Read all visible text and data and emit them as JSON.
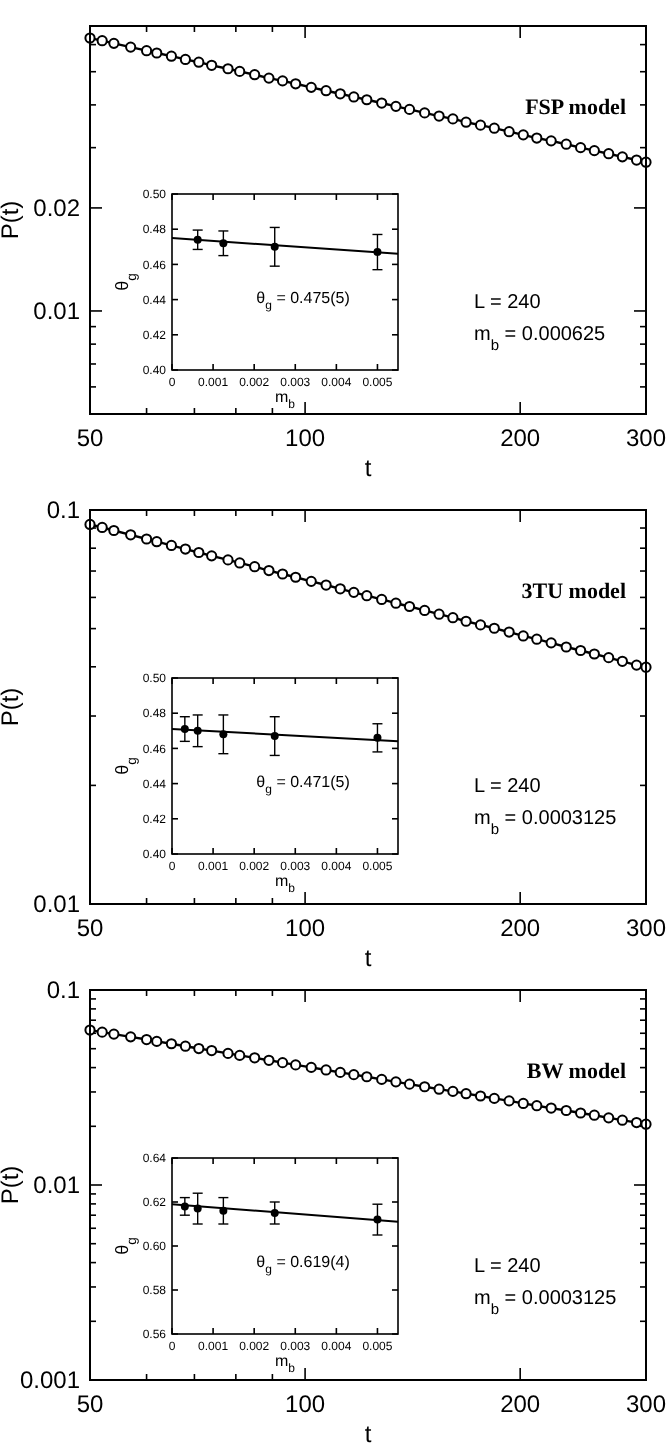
{
  "chart_data": [
    {
      "type": "line",
      "xlabel": "t",
      "ylabel": "P(t)",
      "log": "xy",
      "marker": "circle",
      "xlim": [
        50,
        300
      ],
      "ylim": [
        0.005,
        0.068
      ],
      "xticks": [
        50,
        {
          "value": 60,
          "label": null
        },
        {
          "value": 70,
          "label": null
        },
        {
          "value": 80,
          "label": null
        },
        {
          "value": 90,
          "label": null
        },
        100,
        200,
        300
      ],
      "yticks": [
        {
          "value": 0.006,
          "label": null
        },
        {
          "value": 0.007,
          "label": null
        },
        {
          "value": 0.008,
          "label": null
        },
        {
          "value": 0.009,
          "label": null
        },
        0.01,
        0.02,
        {
          "value": 0.03,
          "label": null
        },
        {
          "value": 0.04,
          "label": null
        },
        {
          "value": 0.05,
          "label": null
        },
        {
          "value": 0.06,
          "label": null
        }
      ],
      "annotations": [
        "FSP model",
        "L = 240",
        "m$_{b}$ = 0.000625"
      ],
      "x": [
        50,
        52,
        54,
        57,
        60,
        62,
        65,
        68,
        71,
        74,
        78,
        81,
        85,
        89,
        93,
        97,
        102,
        107,
        112,
        117,
        122,
        128,
        134,
        140,
        147,
        154,
        161,
        168,
        176,
        184,
        193,
        202,
        211,
        221,
        232,
        243,
        254,
        266,
        278,
        291,
        300
      ],
      "series": [
        {
          "color": "#000000",
          "values": [
            0.0627,
            0.0616,
            0.0605,
            0.059,
            0.0576,
            0.0567,
            0.0555,
            0.0543,
            0.0533,
            0.0522,
            0.051,
            0.0501,
            0.049,
            0.0479,
            0.047,
            0.0461,
            0.045,
            0.044,
            0.0431,
            0.0422,
            0.0414,
            0.0405,
            0.0396,
            0.0388,
            0.0379,
            0.0371,
            0.0364,
            0.0356,
            0.0349,
            0.0342,
            0.0334,
            0.0327,
            0.032,
            0.0314,
            0.0307,
            0.03,
            0.0294,
            0.0288,
            0.0282,
            0.0276,
            0.0272
          ]
        }
      ]
    },
    {
      "type": "scatter",
      "xlabel": "m$_{b}$",
      "ylabel": "θ$_{g}$",
      "marker": "circle",
      "xlim": [
        0,
        0.0055
      ],
      "ylim": [
        0.4,
        0.5
      ],
      "xticks": [
        0,
        0.001,
        0.002,
        0.003,
        0.004,
        0.005
      ],
      "yticks": [
        {
          "value": 0.4,
          "label": "0.40"
        },
        0.42,
        0.44,
        0.46,
        0.48,
        {
          "value": 0.5,
          "label": "0.50"
        }
      ],
      "annotations": [
        "θ$_{g}$ = 0.475(5)"
      ],
      "series": [
        {
          "color": "#000000",
          "x": [
            0.000625,
            0.00125,
            0.0025,
            0.005
          ],
          "values": [
            0.474,
            0.472,
            0.47,
            0.467
          ],
          "errors": [
            0.0055,
            0.007,
            0.011,
            0.01
          ]
        },
        {
          "type": "line",
          "color": "#000000",
          "marker": "none",
          "x": [
            0,
            0.0055
          ],
          "values": [
            0.475,
            0.466
          ]
        }
      ]
    },
    {
      "type": "line",
      "xlabel": "t",
      "ylabel": "P(t)",
      "log": "xy",
      "marker": "circle",
      "xlim": [
        50,
        300
      ],
      "ylim": [
        0.01,
        0.1
      ],
      "xticks": [
        50,
        {
          "value": 60,
          "label": null
        },
        {
          "value": 70,
          "label": null
        },
        {
          "value": 80,
          "label": null
        },
        {
          "value": 90,
          "label": null
        },
        100,
        200,
        300
      ],
      "yticks": [
        0.01,
        {
          "value": 0.02,
          "label": null
        },
        {
          "value": 0.03,
          "label": null
        },
        {
          "value": 0.04,
          "label": null
        },
        {
          "value": 0.05,
          "label": null
        },
        {
          "value": 0.06,
          "label": null
        },
        {
          "value": 0.07,
          "label": null
        },
        {
          "value": 0.08,
          "label": null
        },
        {
          "value": 0.09,
          "label": null
        },
        0.1
      ],
      "annotations": [
        "3TU model",
        "L = 240",
        "m$_{b}$ = 0.0003125"
      ],
      "x": [
        50,
        52,
        54,
        57,
        60,
        62,
        65,
        68,
        71,
        74,
        78,
        81,
        85,
        89,
        93,
        97,
        102,
        107,
        112,
        117,
        122,
        128,
        134,
        140,
        147,
        154,
        161,
        168,
        176,
        184,
        193,
        202,
        211,
        221,
        232,
        243,
        254,
        266,
        278,
        291,
        300
      ],
      "series": [
        {
          "color": "#000000",
          "values": [
            0.0919,
            0.0903,
            0.0887,
            0.0865,
            0.0844,
            0.0831,
            0.0813,
            0.0796,
            0.078,
            0.0765,
            0.0747,
            0.0734,
            0.0718,
            0.0702,
            0.0688,
            0.0675,
            0.0659,
            0.0645,
            0.0631,
            0.0618,
            0.0606,
            0.0593,
            0.058,
            0.0569,
            0.0556,
            0.0544,
            0.0533,
            0.0522,
            0.0511,
            0.0501,
            0.049,
            0.0479,
            0.047,
            0.046,
            0.0449,
            0.044,
            0.0431,
            0.0422,
            0.0413,
            0.0404,
            0.0399
          ]
        }
      ]
    },
    {
      "type": "scatter",
      "xlabel": "m$_{b}$",
      "ylabel": "θ$_{g}$",
      "marker": "circle",
      "xlim": [
        0,
        0.0055
      ],
      "ylim": [
        0.4,
        0.5
      ],
      "xticks": [
        0,
        0.001,
        0.002,
        0.003,
        0.004,
        0.005
      ],
      "yticks": [
        {
          "value": 0.4,
          "label": "0.40"
        },
        0.42,
        0.44,
        0.46,
        0.48,
        {
          "value": 0.5,
          "label": "0.50"
        }
      ],
      "annotations": [
        "θ$_{g}$ = 0.471(5)"
      ],
      "series": [
        {
          "color": "#000000",
          "x": [
            0.0003125,
            0.000625,
            0.00125,
            0.0025,
            0.005
          ],
          "values": [
            0.471,
            0.47,
            0.468,
            0.467,
            0.466
          ],
          "errors": [
            0.007,
            0.009,
            0.011,
            0.011,
            0.008
          ]
        },
        {
          "type": "line",
          "color": "#000000",
          "marker": "none",
          "x": [
            0,
            0.0055
          ],
          "values": [
            0.471,
            0.464
          ]
        }
      ]
    },
    {
      "type": "line",
      "xlabel": "t",
      "ylabel": "P(t)",
      "log": "xy",
      "marker": "circle",
      "xlim": [
        50,
        300
      ],
      "ylim": [
        0.001,
        0.1
      ],
      "xticks": [
        50,
        {
          "value": 60,
          "label": null
        },
        {
          "value": 70,
          "label": null
        },
        {
          "value": 80,
          "label": null
        },
        {
          "value": 90,
          "label": null
        },
        100,
        200,
        300
      ],
      "yticks": [
        0.001,
        {
          "value": 0.002,
          "label": null
        },
        {
          "value": 0.003,
          "label": null
        },
        {
          "value": 0.004,
          "label": null
        },
        {
          "value": 0.005,
          "label": null
        },
        {
          "value": 0.006,
          "label": null
        },
        {
          "value": 0.007,
          "label": null
        },
        {
          "value": 0.008,
          "label": null
        },
        {
          "value": 0.009,
          "label": null
        },
        0.01,
        {
          "value": 0.02,
          "label": null
        },
        {
          "value": 0.03,
          "label": null
        },
        {
          "value": 0.04,
          "label": null
        },
        {
          "value": 0.05,
          "label": null
        },
        {
          "value": 0.06,
          "label": null
        },
        {
          "value": 0.07,
          "label": null
        },
        {
          "value": 0.08,
          "label": null
        },
        {
          "value": 0.09,
          "label": null
        },
        0.1
      ],
      "annotations": [
        "BW model",
        "L = 240",
        "m$_{b}$ = 0.0003125"
      ],
      "x": [
        50,
        52,
        54,
        57,
        60,
        62,
        65,
        68,
        71,
        74,
        78,
        81,
        85,
        89,
        93,
        97,
        102,
        107,
        112,
        117,
        122,
        128,
        134,
        140,
        147,
        154,
        161,
        168,
        176,
        184,
        193,
        202,
        211,
        221,
        232,
        243,
        254,
        266,
        278,
        291,
        300
      ],
      "series": [
        {
          "color": "#000000",
          "values": [
            0.0623,
            0.0608,
            0.0594,
            0.0575,
            0.0557,
            0.0545,
            0.053,
            0.0515,
            0.0501,
            0.0489,
            0.0473,
            0.0462,
            0.0449,
            0.0436,
            0.0424,
            0.0413,
            0.0401,
            0.0389,
            0.0378,
            0.0368,
            0.0359,
            0.0348,
            0.0338,
            0.0329,
            0.0319,
            0.031,
            0.0302,
            0.0294,
            0.0286,
            0.0278,
            0.027,
            0.0262,
            0.0255,
            0.0248,
            0.0241,
            0.0234,
            0.0228,
            0.0221,
            0.0215,
            0.0209,
            0.0205
          ]
        }
      ]
    },
    {
      "type": "scatter",
      "xlabel": "m$_{b}$",
      "ylabel": "θ$_{g}$",
      "marker": "circle",
      "xlim": [
        0,
        0.0055
      ],
      "ylim": [
        0.56,
        0.64
      ],
      "xticks": [
        0,
        0.001,
        0.002,
        0.003,
        0.004,
        0.005
      ],
      "yticks": [
        0.56,
        0.58,
        {
          "value": 0.6,
          "label": "0.60"
        },
        0.62,
        0.64
      ],
      "annotations": [
        "θ$_{g}$ = 0.619(4)"
      ],
      "series": [
        {
          "color": "#000000",
          "x": [
            0.0003125,
            0.000625,
            0.00125,
            0.0025,
            0.005
          ],
          "values": [
            0.618,
            0.617,
            0.616,
            0.615,
            0.612
          ],
          "errors": [
            0.004,
            0.007,
            0.006,
            0.005,
            0.007
          ]
        },
        {
          "type": "line",
          "color": "#000000",
          "marker": "none",
          "x": [
            0,
            0.0055
          ],
          "values": [
            0.619,
            0.611
          ]
        }
      ]
    }
  ]
}
